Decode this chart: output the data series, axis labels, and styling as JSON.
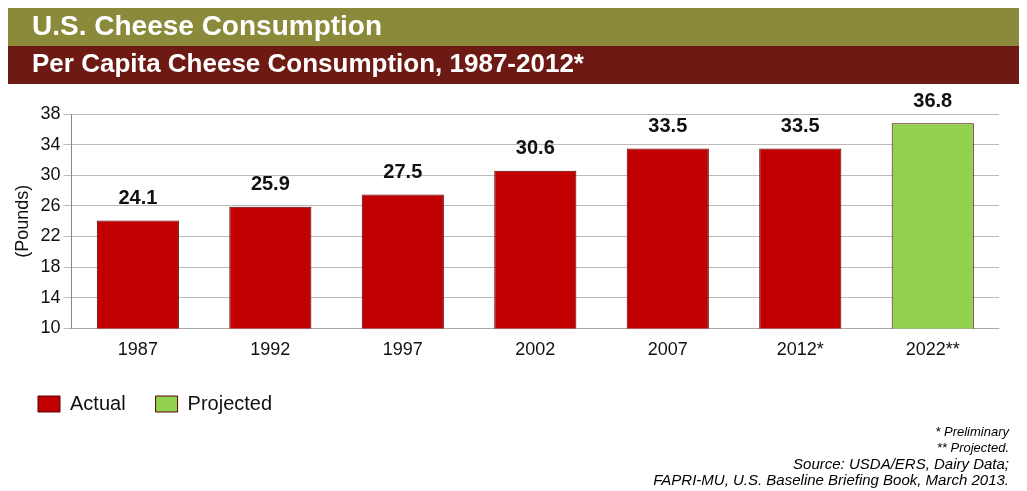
{
  "chart_data": {
    "type": "bar",
    "title": "U.S. Cheese Consumption",
    "subtitle": "Per Capita Cheese Consumption, 1987-2012*",
    "categories": [
      "1987",
      "1992",
      "1997",
      "2002",
      "2007",
      "2012*",
      "2022**"
    ],
    "series": [
      {
        "name": "Actual",
        "color": "#c00000",
        "values": [
          24.1,
          25.9,
          27.5,
          30.6,
          33.5,
          33.5,
          null
        ]
      },
      {
        "name": "Projected",
        "color": "#92d050",
        "values": [
          null,
          null,
          null,
          null,
          null,
          null,
          36.8
        ]
      }
    ],
    "ylabel": "(Pounds)",
    "ylim": [
      10,
      38
    ],
    "yticks": [
      10,
      14,
      18,
      22,
      26,
      30,
      34,
      38
    ],
    "grid": "y",
    "legend": "bottom left",
    "data_labels": true,
    "annotations": [
      "* Preliminary",
      "** Projected.",
      "Source: USDA/ERS, Dairy Data;",
      "FAPRI-MU, U.S. Baseline Briefing Book, March 2013."
    ]
  }
}
